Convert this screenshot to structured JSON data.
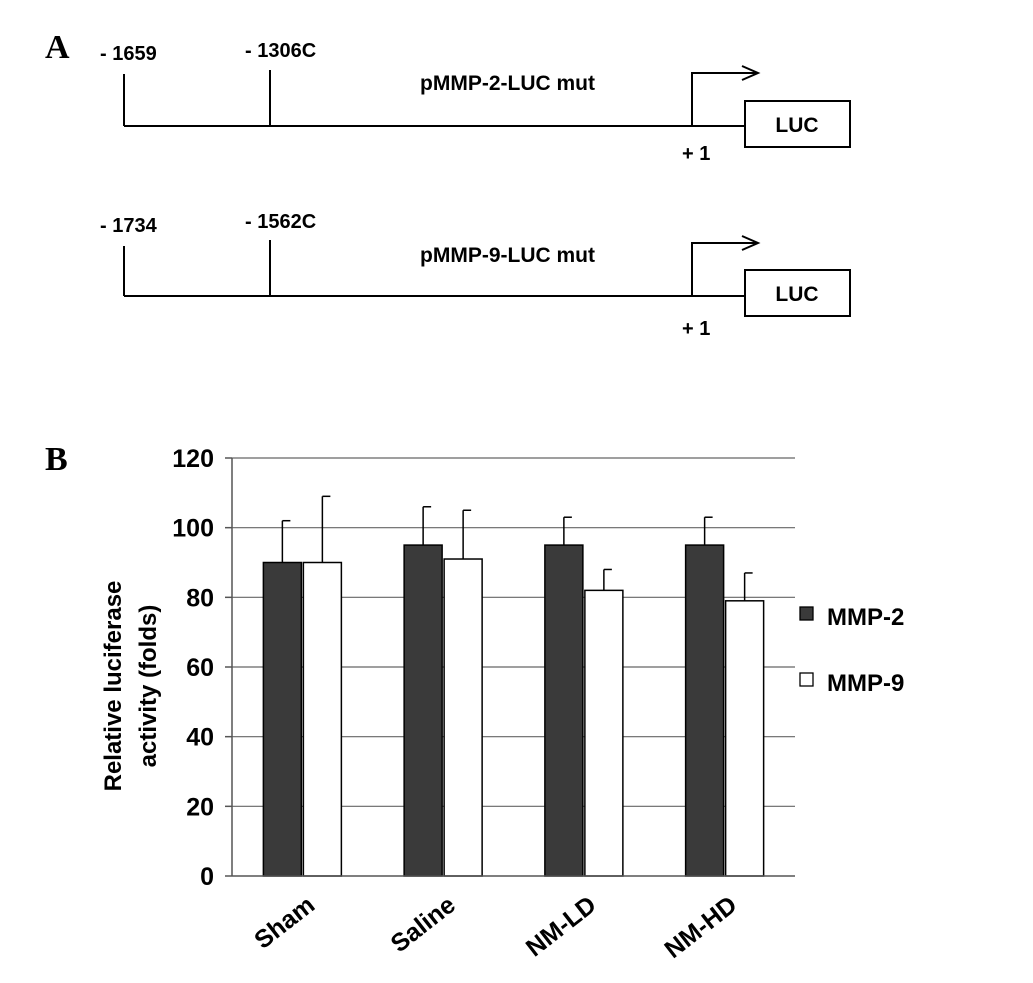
{
  "panel_a": {
    "label": "A",
    "constructs": [
      {
        "name": "pMMP-2-LUC mut",
        "start_label": "- 1659",
        "mut_label": "- 1306C",
        "tss_label": "+ 1",
        "reporter": "LUC"
      },
      {
        "name": "pMMP-9-LUC mut",
        "start_label": "- 1734",
        "mut_label": "- 1562C",
        "tss_label": "+ 1",
        "reporter": "LUC"
      }
    ]
  },
  "panel_b": {
    "label": "B",
    "ylabel_line1": "Relative luciferase",
    "ylabel_line2": "activity (folds)"
  },
  "chart_data": {
    "type": "bar",
    "categories": [
      "Sham",
      "Saline",
      "NM-LD",
      "NM-HD"
    ],
    "series": [
      {
        "name": "MMP-2",
        "color": "#3a3a3a",
        "values": [
          90,
          95,
          95,
          95
        ],
        "errors": [
          12,
          11,
          8,
          8
        ]
      },
      {
        "name": "MMP-9",
        "color": "#ffffff",
        "values": [
          90,
          91,
          82,
          79
        ],
        "errors": [
          19,
          14,
          6,
          8
        ]
      }
    ],
    "ylabel": "Relative luciferase activity (folds)",
    "xlabel": "",
    "ylim": [
      0,
      120
    ],
    "yticks": [
      0,
      20,
      40,
      60,
      80,
      100,
      120
    ],
    "grid": true,
    "legend_position": "right"
  }
}
